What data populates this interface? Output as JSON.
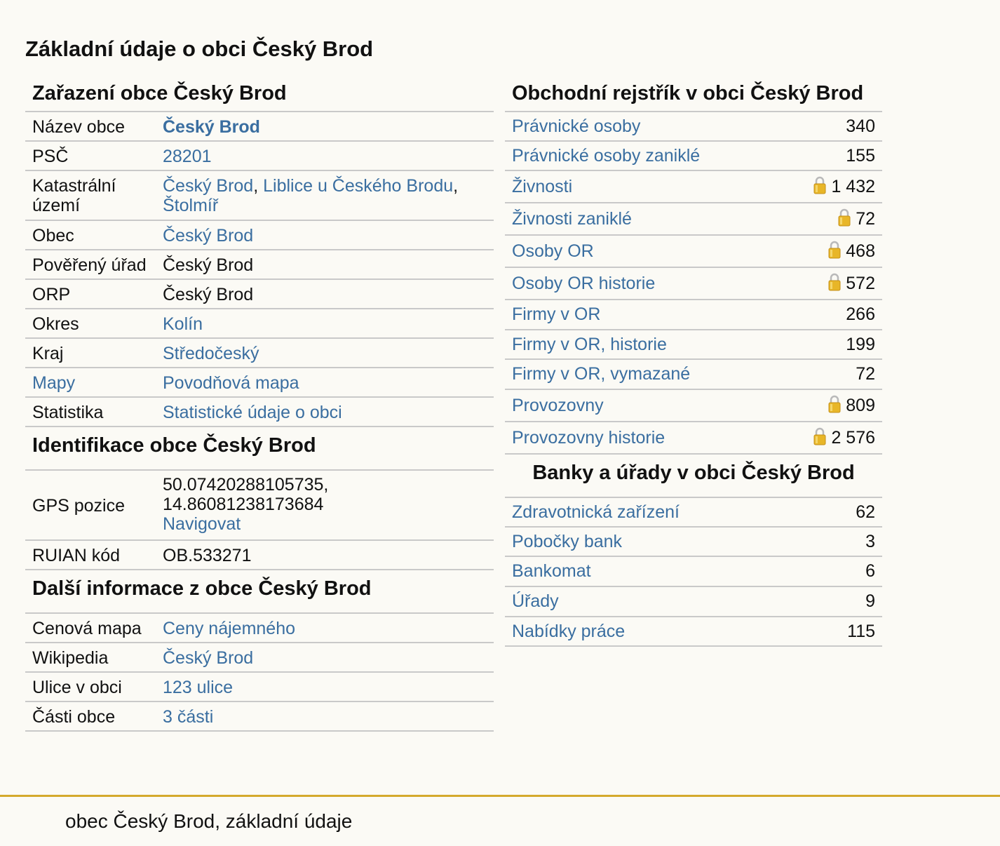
{
  "page_title": "Základní údaje o obci Český Brod",
  "zarazeni": {
    "title": "Zařazení obce Český Brod",
    "nazev_label": "Název obce",
    "nazev_value": "Český Brod",
    "psc_label": "PSČ",
    "psc_value": "28201",
    "katastr_label": "Katastrální území",
    "katastr_links": [
      "Český Brod",
      "Liblice u Českého Brodu",
      "Štolmíř"
    ],
    "obec_label": "Obec",
    "obec_value": "Český Brod",
    "povereny_label": "Pověřený úřad",
    "povereny_value": "Český Brod",
    "orp_label": "ORP",
    "orp_value": "Český Brod",
    "okres_label": "Okres",
    "okres_value": "Kolín",
    "kraj_label": "Kraj",
    "kraj_value": "Středočeský",
    "mapy_label": "Mapy",
    "mapy_value": "Povodňová mapa",
    "statistika_label": "Statistika",
    "statistika_value": "Statistické údaje o obci"
  },
  "identifikace": {
    "title": "Identifikace obce Český Brod",
    "gps_label": "GPS pozice",
    "gps_lat": "50.07420288105735,",
    "gps_lon": "14.86081238173684",
    "gps_link": "Navigovat",
    "ruian_label": "RUIAN kód",
    "ruian_value": "OB.533271"
  },
  "dalsi": {
    "title": "Další informace z obce Český Brod",
    "cenova_label": "Cenová mapa",
    "cenova_value": "Ceny nájemného",
    "wiki_label": "Wikipedia",
    "wiki_value": "Český Brod",
    "ulice_label": "Ulice v obci",
    "ulice_value": "123 ulice",
    "casti_label": "Části obce",
    "casti_value": "3 části"
  },
  "obchodni": {
    "title": "Obchodní rejstřík v obci Český Brod",
    "rows": [
      {
        "label": "Právnické osoby",
        "value": "340",
        "locked": false
      },
      {
        "label": "Právnické osoby zaniklé",
        "value": "155",
        "locked": false
      },
      {
        "label": "Živnosti",
        "value": "1 432",
        "locked": true
      },
      {
        "label": "Živnosti zaniklé",
        "value": "72",
        "locked": true
      },
      {
        "label": "Osoby OR",
        "value": "468",
        "locked": true
      },
      {
        "label": "Osoby OR historie",
        "value": "572",
        "locked": true
      },
      {
        "label": "Firmy v OR",
        "value": "266",
        "locked": false
      },
      {
        "label": "Firmy v OR, historie",
        "value": "199",
        "locked": false
      },
      {
        "label": "Firmy v OR, vymazané",
        "value": "72",
        "locked": false
      },
      {
        "label": "Provozovny",
        "value": "809",
        "locked": true
      },
      {
        "label": "Provozovny historie",
        "value": "2 576",
        "locked": true
      }
    ]
  },
  "banky": {
    "title": "Banky a úřady v obci Český Brod",
    "rows": [
      {
        "label": "Zdravotnická zařízení",
        "value": "62"
      },
      {
        "label": "Pobočky bank",
        "value": "3"
      },
      {
        "label": "Bankomat",
        "value": "6"
      },
      {
        "label": "Úřady",
        "value": "9"
      },
      {
        "label": "Nabídky práce",
        "value": "115"
      }
    ]
  },
  "footer": {
    "text": "obec Český Brod, základní údaje"
  },
  "colors": {
    "link": "#3a6ea0",
    "footer_line": "#d4a92c",
    "background": "#fbfaf5",
    "lock": "#e8b628"
  },
  "icons": {
    "lock": "lock-icon"
  }
}
